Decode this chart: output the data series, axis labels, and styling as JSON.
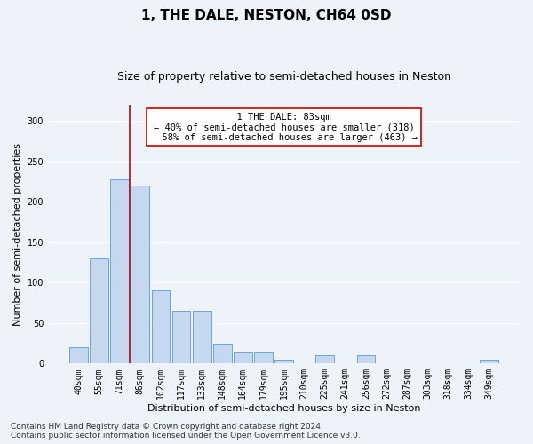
{
  "title": "1, THE DALE, NESTON, CH64 0SD",
  "subtitle": "Size of property relative to semi-detached houses in Neston",
  "xlabel": "Distribution of semi-detached houses by size in Neston",
  "ylabel": "Number of semi-detached properties",
  "footer_line1": "Contains HM Land Registry data © Crown copyright and database right 2024.",
  "footer_line2": "Contains public sector information licensed under the Open Government Licence v3.0.",
  "property_label": "1 THE DALE: 83sqm",
  "smaller_pct": "40% of semi-detached houses are smaller (318)",
  "larger_pct": "58% of semi-detached houses are larger (463)",
  "categories": [
    "40sqm",
    "55sqm",
    "71sqm",
    "86sqm",
    "102sqm",
    "117sqm",
    "133sqm",
    "148sqm",
    "164sqm",
    "179sqm",
    "195sqm",
    "210sqm",
    "225sqm",
    "241sqm",
    "256sqm",
    "272sqm",
    "287sqm",
    "303sqm",
    "318sqm",
    "334sqm",
    "349sqm"
  ],
  "values": [
    20,
    130,
    228,
    220,
    90,
    65,
    65,
    25,
    15,
    15,
    5,
    0,
    10,
    0,
    10,
    0,
    0,
    0,
    0,
    0,
    5
  ],
  "bar_color": "#c5d8f0",
  "bar_edge_color": "#5b9bd5",
  "vline_color": "#cc0000",
  "vline_x": 2.5,
  "annotation_box_color": "#ffffff",
  "annotation_box_edge": "#cc0000",
  "ylim": [
    0,
    320
  ],
  "yticks": [
    0,
    50,
    100,
    150,
    200,
    250,
    300
  ],
  "background_color": "#eef2f9",
  "grid_color": "#ffffff",
  "title_fontsize": 11,
  "subtitle_fontsize": 9,
  "axis_label_fontsize": 8,
  "tick_fontsize": 7,
  "annotation_fontsize": 7.5,
  "footer_fontsize": 6.5
}
